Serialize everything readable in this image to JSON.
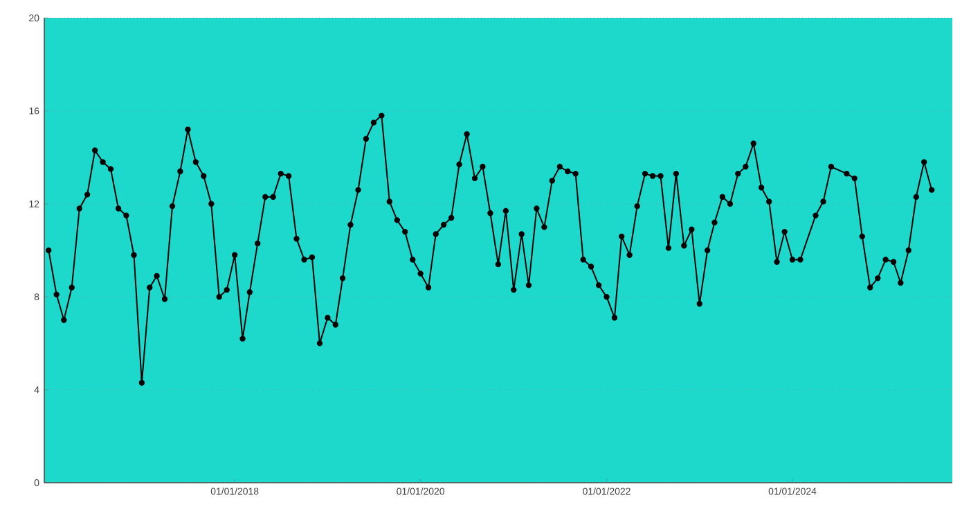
{
  "chart_data": {
    "type": "line",
    "x": [
      "2016-01",
      "2016-02",
      "2016-03",
      "2016-04",
      "2016-05",
      "2016-06",
      "2016-07",
      "2016-08",
      "2016-09",
      "2016-10",
      "2016-11",
      "2016-12",
      "2017-01",
      "2017-02",
      "2017-03",
      "2017-04",
      "2017-05",
      "2017-06",
      "2017-07",
      "2017-08",
      "2017-09",
      "2017-10",
      "2017-11",
      "2017-12",
      "2018-01",
      "2018-02",
      "2018-03",
      "2018-04",
      "2018-05",
      "2018-06",
      "2018-07",
      "2018-08",
      "2018-09",
      "2018-10",
      "2018-11",
      "2018-12",
      "2019-01",
      "2019-02",
      "2019-03",
      "2019-04",
      "2019-05",
      "2019-06",
      "2019-07",
      "2019-08",
      "2019-09",
      "2019-10",
      "2019-11",
      "2019-12",
      "2020-01",
      "2020-02",
      "2020-03",
      "2020-04",
      "2020-05",
      "2020-06",
      "2020-07",
      "2020-08",
      "2020-09",
      "2020-10",
      "2020-11",
      "2020-12",
      "2021-01",
      "2021-02",
      "2021-03",
      "2021-04",
      "2021-05",
      "2021-06",
      "2021-07",
      "2021-08",
      "2021-09",
      "2021-10",
      "2021-11",
      "2021-12",
      "2022-01",
      "2022-02",
      "2022-03",
      "2022-04",
      "2022-05",
      "2022-06",
      "2022-07",
      "2022-08",
      "2022-09",
      "2022-10",
      "2022-11",
      "2022-12",
      "2023-01",
      "2023-02",
      "2023-03",
      "2023-04",
      "2023-05",
      "2023-06",
      "2023-07",
      "2023-08",
      "2023-09",
      "2023-10",
      "2023-11",
      "2023-12",
      "2024-01",
      "2024-02",
      "2024-04",
      "2024-05",
      "2024-06",
      "2024-08",
      "2024-09",
      "2024-10",
      "2024-11",
      "2024-12",
      "2025-01",
      "2025-02",
      "2025-03",
      "2025-04",
      "2025-05",
      "2025-06",
      "2025-07"
    ],
    "series": [
      {
        "color": "#000000",
        "values": [
          10.0,
          8.1,
          7.0,
          8.4,
          11.8,
          12.4,
          14.3,
          13.8,
          13.5,
          11.8,
          11.5,
          9.8,
          4.3,
          8.4,
          8.9,
          7.9,
          11.9,
          13.4,
          15.2,
          13.8,
          13.2,
          12.0,
          8.0,
          8.3,
          9.8,
          6.2,
          8.2,
          10.3,
          12.3,
          12.3,
          13.3,
          13.2,
          10.5,
          9.6,
          9.7,
          6.0,
          7.1,
          6.8,
          8.8,
          11.1,
          12.6,
          14.8,
          15.5,
          15.8,
          12.1,
          11.3,
          10.8,
          9.6,
          9.0,
          8.4,
          10.7,
          11.1,
          11.4,
          13.7,
          15.0,
          13.1,
          13.6,
          11.6,
          9.4,
          11.7,
          8.3,
          10.7,
          8.5,
          11.8,
          11.0,
          13.0,
          13.6,
          13.4,
          13.3,
          9.6,
          9.3,
          8.5,
          8.0,
          7.1,
          10.6,
          9.8,
          11.9,
          13.3,
          13.2,
          13.2,
          10.1,
          13.3,
          10.2,
          10.9,
          7.7,
          10.0,
          11.2,
          12.3,
          12.0,
          13.3,
          13.6,
          14.6,
          12.7,
          12.1,
          9.5,
          10.8,
          9.6,
          9.6,
          11.5,
          12.1,
          13.6,
          13.3,
          13.1,
          10.6,
          8.4,
          8.8,
          9.6,
          9.5,
          8.6,
          10.0,
          12.3,
          13.8,
          12.6
        ]
      }
    ],
    "xlim": [
      "2015-12-15",
      "2025-09-20"
    ],
    "xticks": [
      {
        "value": "2018-01-01",
        "label": "01/01/2018"
      },
      {
        "value": "2020-01-01",
        "label": "01/01/2020"
      },
      {
        "value": "2022-01-01",
        "label": "01/01/2022"
      },
      {
        "value": "2024-01-01",
        "label": "01/01/2024"
      }
    ],
    "ylim": [
      0,
      20
    ],
    "yticks": [
      0,
      4,
      8,
      12,
      16,
      20
    ],
    "grid": "y",
    "marker": "circle",
    "line_style": "solid",
    "legend": false
  }
}
